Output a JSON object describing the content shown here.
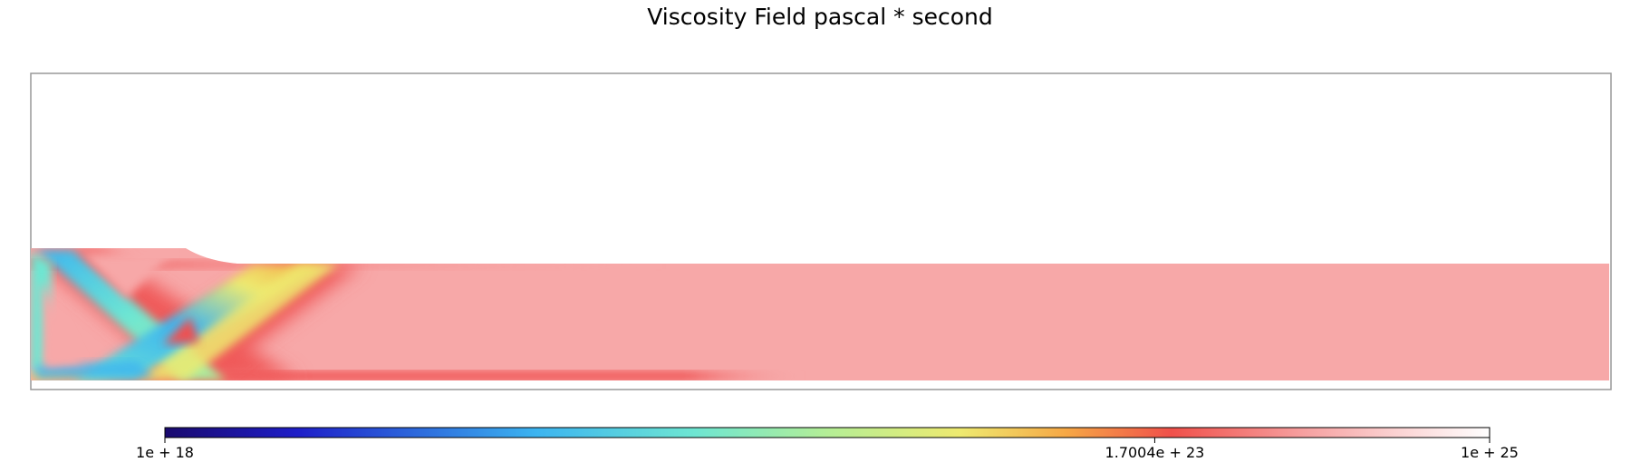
{
  "chart_data": {
    "type": "heatmap",
    "title": "Viscosity Field pascal * second",
    "xlabel": "",
    "ylabel": "",
    "color_scale": {
      "name": "rainbow-to-white",
      "scale": "log",
      "min": 1e+18,
      "max": 1e+25,
      "ticks": [
        {
          "value": 1e+18,
          "label": "1e + 18"
        },
        {
          "value": 1.7004e+23,
          "label": "1.7004e + 23"
        },
        {
          "value": 1e+25,
          "label": "1e + 25"
        }
      ],
      "legend_position": "bottom"
    },
    "field_regions": [
      {
        "region": "background slab",
        "approx_value": 1e+24
      },
      {
        "region": "diagonal shear bands near left boundary",
        "approx_value": 1e+20
      },
      {
        "region": "band edges",
        "approx_value": 1e+22
      },
      {
        "region": "thin layer along bottom boundary",
        "approx_value": 1e+23
      }
    ],
    "colors": {
      "background_field": "#f7a8a8",
      "low": "#1a0a8c",
      "high": "#ffffff",
      "frame": "#999999"
    }
  }
}
